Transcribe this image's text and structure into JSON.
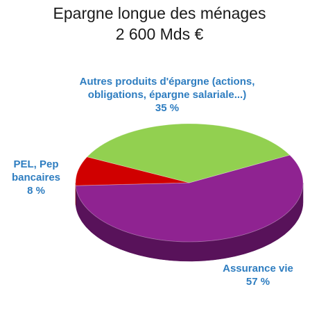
{
  "chart_data": {
    "type": "pie",
    "style": "3d",
    "title": [
      "Epargne longue des ménages",
      "2 600 Mds €"
    ],
    "slices": [
      {
        "label_lines": [
          "Assurance vie"
        ],
        "value_label": "57 %",
        "value": 57,
        "color": "#8f2391",
        "side_color": "#58125a"
      },
      {
        "label_lines": [
          "PEL, Pep",
          "bancaires"
        ],
        "value_label": "8 %",
        "value": 8,
        "color": "#d00000",
        "side_color": "#7e0000"
      },
      {
        "label_lines": [
          "Autres produits d'épargne (actions,",
          "obligations, épargne salariale...)"
        ],
        "value_label": "35 %",
        "value": 35,
        "color": "#92d050",
        "side_color": "#5a8a2a"
      }
    ],
    "label_color": "#2e7dc0"
  }
}
